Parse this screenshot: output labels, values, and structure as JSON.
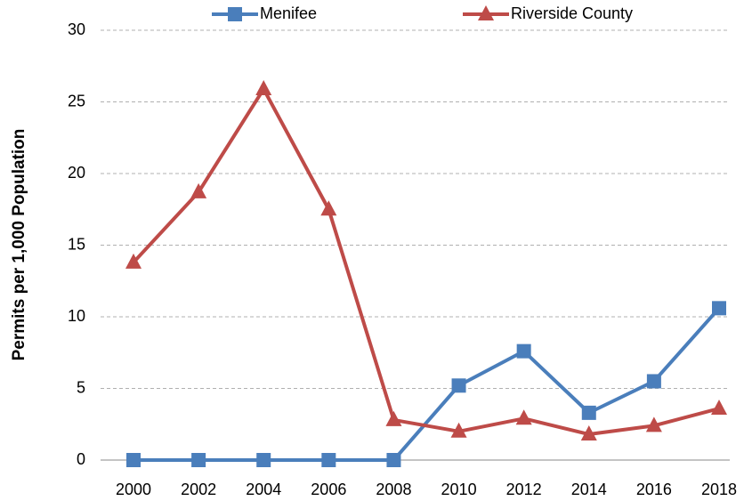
{
  "chart_data": {
    "type": "line",
    "y_label": "Permits per 1,000 Population",
    "categories": [
      "2000",
      "2002",
      "2004",
      "2006",
      "2008",
      "2010",
      "2012",
      "2014",
      "2016",
      "2018"
    ],
    "series": [
      {
        "name": "Menifee",
        "color": "#4a7ebb",
        "marker": "square",
        "values": [
          0,
          0,
          0,
          0,
          0,
          5.2,
          7.6,
          3.3,
          5.5,
          10.6
        ]
      },
      {
        "name": "Riverside County",
        "color": "#be4b48",
        "marker": "triangle",
        "values": [
          13.8,
          18.7,
          25.9,
          17.5,
          2.8,
          2.0,
          2.9,
          1.8,
          2.4,
          3.6
        ]
      }
    ],
    "ylim": [
      0,
      30
    ],
    "yticks": [
      0,
      5,
      10,
      15,
      20,
      25,
      30
    ],
    "grid": true,
    "legend": "top"
  }
}
